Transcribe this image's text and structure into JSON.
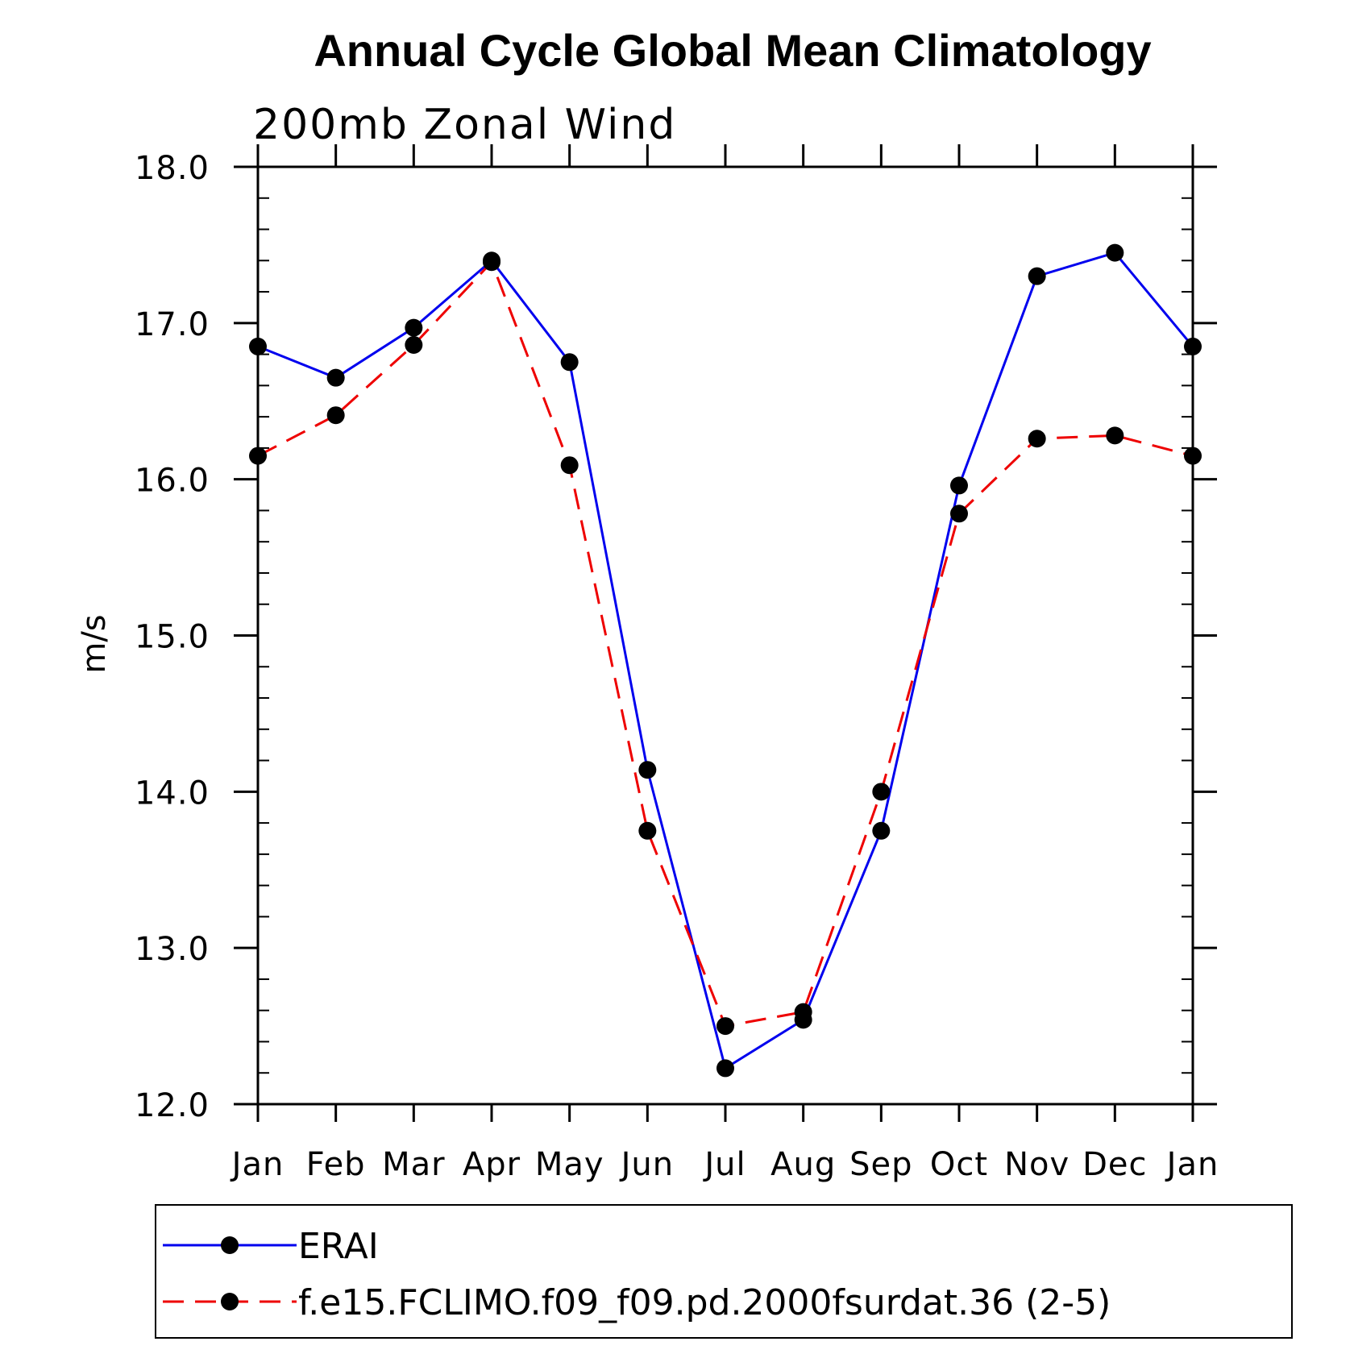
{
  "chart_data": {
    "type": "line",
    "title": "Annual Cycle Global Mean Climatology",
    "subtitle": "200mb Zonal Wind",
    "xlabel": "",
    "ylabel": "m/s",
    "categories": [
      "Jan",
      "Feb",
      "Mar",
      "Apr",
      "May",
      "Jun",
      "Jul",
      "Aug",
      "Sep",
      "Oct",
      "Nov",
      "Dec",
      "Jan"
    ],
    "ylim": [
      12.0,
      18.0
    ],
    "yticks": [
      "12.0",
      "13.0",
      "14.0",
      "15.0",
      "16.0",
      "17.0",
      "18.0"
    ],
    "grid": false,
    "legend_position": "bottom",
    "series": [
      {
        "name": "ERAI",
        "color": "#0000ee",
        "dash": "solid",
        "marker": "filled-circle",
        "values": [
          16.85,
          16.65,
          16.97,
          17.4,
          16.75,
          14.14,
          12.23,
          12.54,
          13.75,
          15.96,
          17.3,
          17.45,
          16.85
        ]
      },
      {
        "name": "f.e15.FCLIMO.f09_f09.pd.2000fsurdat.36 (2-5)",
        "color": "#ee0000",
        "dash": "dashed",
        "marker": "filled-circle",
        "values": [
          16.15,
          16.41,
          16.86,
          17.39,
          16.09,
          13.75,
          12.5,
          12.59,
          14.0,
          15.78,
          16.26,
          16.28,
          16.15
        ]
      }
    ]
  }
}
